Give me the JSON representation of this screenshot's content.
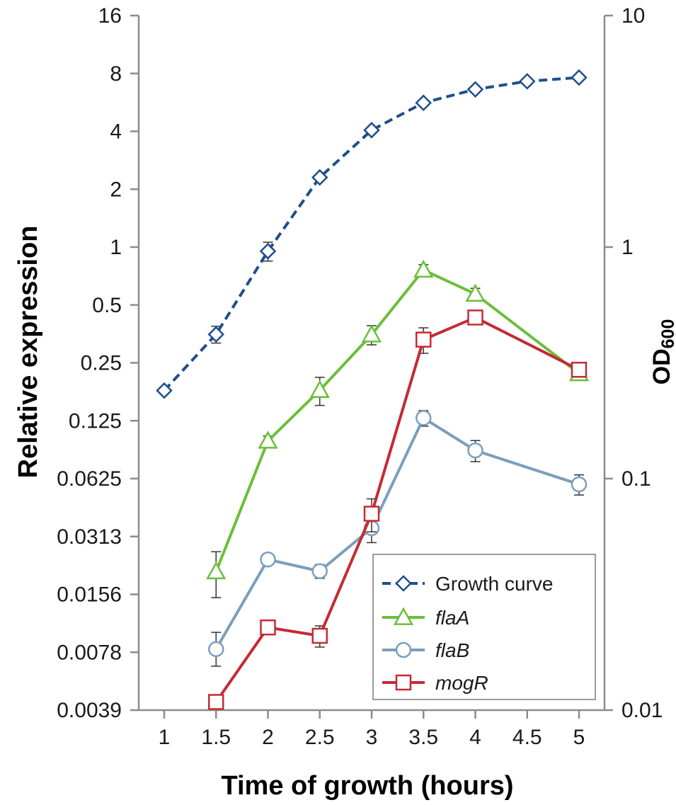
{
  "chart_data": {
    "type": "line",
    "xlabel": "Time of growth (hours)",
    "ylabel_left": "Relative expression",
    "ylabel_right_main": "OD",
    "ylabel_right_sub": "600",
    "x_ticks": [
      "1",
      "1.5",
      "2",
      "2.5",
      "3",
      "3.5",
      "4",
      "4.5",
      "5"
    ],
    "x_range": [
      1,
      5
    ],
    "y_left_ticks": [
      "16",
      "8",
      "4",
      "2",
      "1",
      "0.5",
      "0.25",
      "0.125",
      "0.0625",
      "0.0313",
      "0.0156",
      "0.0078",
      "0.0039"
    ],
    "y_left_scale": "log2",
    "y_left_range": [
      0.0039,
      16
    ],
    "y_right_ticks": [
      "10",
      "1",
      "0.1",
      "0.01"
    ],
    "y_right_scale": "log10",
    "y_right_range": [
      0.01,
      10
    ],
    "series": [
      {
        "name": "Growth curve",
        "italic": false,
        "axis": "right",
        "color": "#1f4e8c",
        "dashed": true,
        "marker": "diamond",
        "x": [
          1,
          1.5,
          2,
          2.5,
          3,
          3.5,
          4,
          4.5,
          5
        ],
        "y": [
          0.24,
          0.42,
          0.96,
          2.0,
          3.2,
          4.2,
          4.8,
          5.2,
          5.4
        ],
        "err": [
          0,
          0.035,
          0.09,
          0,
          0,
          0,
          0,
          0,
          0
        ]
      },
      {
        "name": "flaA",
        "italic": true,
        "axis": "left",
        "color": "#6abf3a",
        "dashed": false,
        "marker": "triangle",
        "x": [
          1.5,
          2,
          2.5,
          3,
          3.5,
          4,
          5
        ],
        "y": [
          0.0205,
          0.098,
          0.18,
          0.35,
          0.76,
          0.57,
          0.22
        ],
        "err_up": [
          0.0055,
          0.006,
          0.03,
          0.04,
          0.05,
          0.04,
          0.008
        ],
        "err_down": [
          0.0055,
          0.006,
          0.03,
          0.04,
          0.05,
          0.04,
          0.008
        ]
      },
      {
        "name": "flaB",
        "italic": true,
        "axis": "left",
        "color": "#7a9fbc",
        "dashed": false,
        "marker": "circle",
        "x": [
          1.5,
          2,
          2.5,
          3,
          3.5,
          4,
          5
        ],
        "y": [
          0.0081,
          0.0237,
          0.0206,
          0.0345,
          0.129,
          0.0875,
          0.0583
        ],
        "err_up": [
          0.0018,
          0,
          0.0017,
          0.0055,
          0.012,
          0.011,
          0.007
        ],
        "err_down": [
          0.0015,
          0,
          0.0017,
          0.0055,
          0.012,
          0.011,
          0.007
        ]
      },
      {
        "name": "mogR",
        "italic": true,
        "axis": "left",
        "color": "#c42b35",
        "dashed": false,
        "marker": "square",
        "x": [
          1.5,
          2,
          2.5,
          3,
          3.5,
          4,
          5
        ],
        "y": [
          0.0043,
          0.0105,
          0.0095,
          0.041,
          0.33,
          0.43,
          0.23
        ],
        "err_up": [
          0,
          0.0008,
          0.0012,
          0.008,
          0.05,
          0.035,
          0.01
        ],
        "err_down": [
          0,
          0.0008,
          0.0012,
          0.008,
          0.05,
          0.035,
          0.01
        ]
      }
    ],
    "legend": {
      "position": "bottom-right",
      "entries": [
        "Growth curve",
        "flaA",
        "flaB",
        "mogR"
      ]
    }
  }
}
